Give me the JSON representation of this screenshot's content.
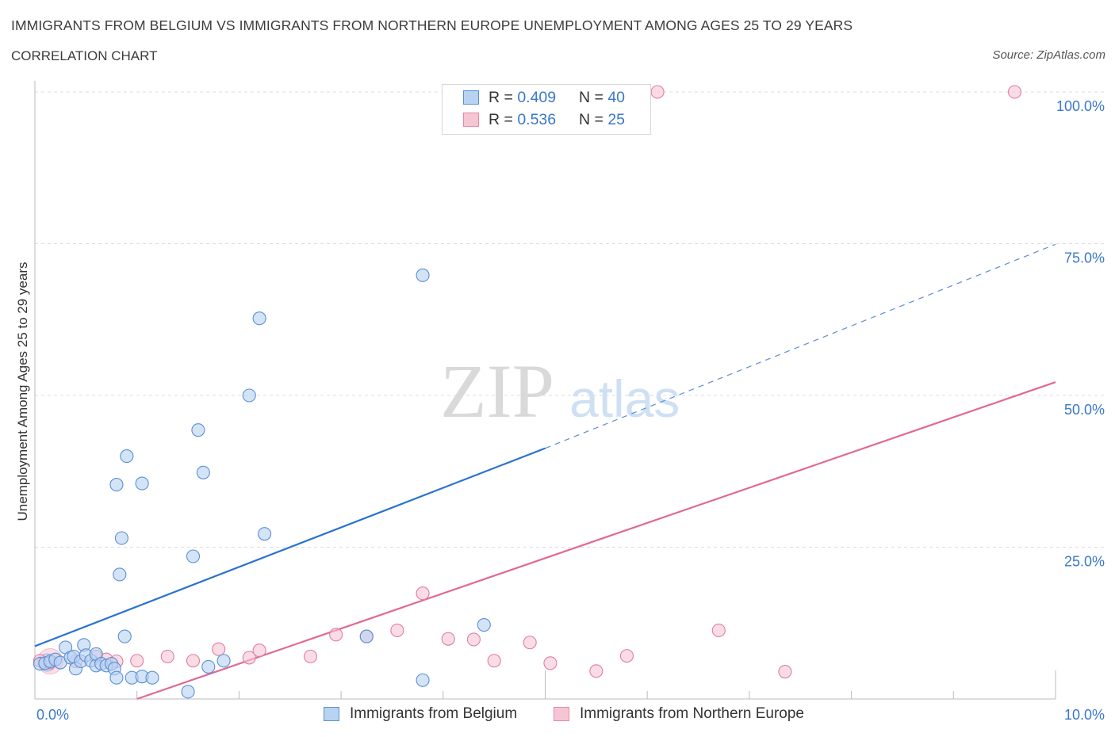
{
  "header": {
    "title": "IMMIGRANTS FROM BELGIUM VS IMMIGRANTS FROM NORTHERN EUROPE UNEMPLOYMENT AMONG AGES 25 TO 29 YEARS",
    "subtitle": "CORRELATION CHART",
    "source": "Source: ZipAtlas.com"
  },
  "watermark": {
    "zip": "ZIP",
    "atlas": "atlas"
  },
  "legend": {
    "rows": [
      {
        "r_label": "R =",
        "r_value": "0.409",
        "n_label": "N =",
        "n_value": "40",
        "color": "#5b8fd6"
      },
      {
        "r_label": "R =",
        "r_value": "0.536",
        "n_label": "N =",
        "n_value": "25",
        "color": "#e888a6"
      }
    ]
  },
  "bottom_legend": {
    "series1": "Immigrants from Belgium",
    "series2": "Immigrants from Northern Europe"
  },
  "chart_data": {
    "type": "scatter",
    "title": "IMMIGRANTS FROM BELGIUM VS IMMIGRANTS FROM NORTHERN EUROPE UNEMPLOYMENT AMONG AGES 25 TO 29 YEARS",
    "subtitle": "CORRELATION CHART",
    "xlabel": "",
    "ylabel": "Unemployment Among Ages 25 to 29 years",
    "xlim": [
      0,
      10
    ],
    "ylim": [
      0,
      100
    ],
    "x_tick_labels": [
      "0.0%",
      "10.0%"
    ],
    "y_ticks": [
      25,
      50,
      75,
      100
    ],
    "y_tick_labels": [
      "25.0%",
      "50.0%",
      "75.0%",
      "100.0%"
    ],
    "grid": true,
    "legend_position": "top-center",
    "series": [
      {
        "name": "Immigrants from Belgium",
        "color": "#5b8fd6",
        "fill": "#b8d2f2",
        "stats": {
          "R": 0.409,
          "N": 40
        },
        "trend": {
          "start": [
            0,
            8.7
          ],
          "end": [
            5.0,
            41.3
          ],
          "dashed_end": [
            10,
            74.9
          ]
        },
        "points": [
          [
            0.05,
            5.8
          ],
          [
            0.1,
            5.9
          ],
          [
            0.15,
            6.2
          ],
          [
            0.2,
            6.5
          ],
          [
            0.25,
            6.0
          ],
          [
            0.3,
            8.5
          ],
          [
            0.35,
            6.8
          ],
          [
            0.38,
            7.0
          ],
          [
            0.4,
            5.0
          ],
          [
            0.45,
            6.2
          ],
          [
            0.48,
            8.9
          ],
          [
            0.5,
            7.2
          ],
          [
            0.55,
            6.3
          ],
          [
            0.6,
            5.5
          ],
          [
            0.6,
            7.4
          ],
          [
            0.65,
            5.8
          ],
          [
            0.7,
            5.5
          ],
          [
            0.75,
            5.8
          ],
          [
            0.78,
            5.0
          ],
          [
            0.8,
            3.5
          ],
          [
            0.8,
            35.3
          ],
          [
            0.9,
            40.0
          ],
          [
            0.95,
            3.5
          ],
          [
            0.88,
            10.3
          ],
          [
            0.85,
            26.5
          ],
          [
            0.83,
            20.5
          ],
          [
            1.05,
            3.7
          ],
          [
            1.15,
            3.5
          ],
          [
            1.05,
            35.5
          ],
          [
            1.5,
            1.2
          ],
          [
            1.55,
            23.5
          ],
          [
            1.6,
            44.3
          ],
          [
            1.65,
            37.3
          ],
          [
            1.7,
            5.3
          ],
          [
            1.85,
            6.3
          ],
          [
            2.1,
            50.0
          ],
          [
            2.2,
            62.7
          ],
          [
            2.25,
            27.2
          ],
          [
            3.25,
            10.3
          ],
          [
            3.8,
            3.1
          ],
          [
            3.8,
            69.8
          ],
          [
            4.4,
            12.2
          ]
        ]
      },
      {
        "name": "Immigrants from Northern Europe",
        "color": "#e07da0",
        "fill": "#f6c5d4",
        "stats": {
          "R": 0.536,
          "N": 25
        },
        "trend": {
          "start": [
            1.0,
            0.0
          ],
          "end": [
            10,
            52.2
          ]
        },
        "points": [
          [
            0.05,
            6.3
          ],
          [
            0.15,
            6.0
          ],
          [
            0.4,
            6.2
          ],
          [
            0.6,
            7.0
          ],
          [
            0.7,
            6.5
          ],
          [
            0.8,
            6.2
          ],
          [
            1.0,
            6.3
          ],
          [
            1.3,
            7.0
          ],
          [
            1.55,
            6.3
          ],
          [
            1.8,
            8.2
          ],
          [
            2.1,
            6.8
          ],
          [
            2.2,
            8.0
          ],
          [
            2.7,
            7.0
          ],
          [
            2.95,
            10.6
          ],
          [
            3.25,
            10.3
          ],
          [
            3.55,
            11.3
          ],
          [
            3.8,
            17.4
          ],
          [
            4.05,
            9.9
          ],
          [
            4.3,
            9.8
          ],
          [
            4.5,
            6.3
          ],
          [
            4.85,
            9.3
          ],
          [
            5.05,
            5.9
          ],
          [
            5.5,
            4.6
          ],
          [
            5.8,
            7.1
          ],
          [
            6.1,
            100.0
          ],
          [
            6.7,
            11.3
          ],
          [
            7.35,
            4.5
          ],
          [
            9.6,
            100.0
          ]
        ]
      }
    ]
  }
}
